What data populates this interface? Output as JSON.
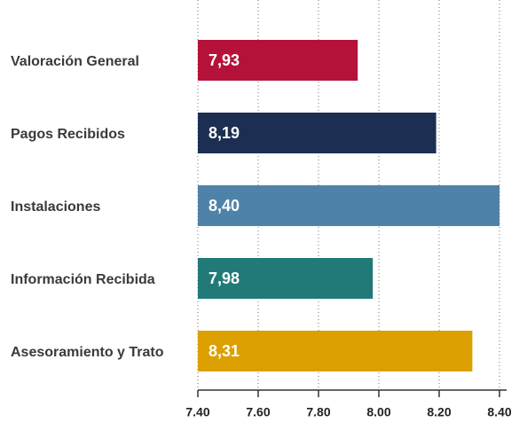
{
  "chart_data": {
    "type": "bar",
    "orientation": "horizontal",
    "categories": [
      "Valoración General",
      "Pagos Recibidos",
      "Instalaciones",
      "Información Recibida",
      "Asesoramiento y Trato"
    ],
    "values": [
      7.93,
      8.19,
      8.4,
      7.98,
      8.31
    ],
    "value_labels": [
      "7,93",
      "8,19",
      "8,40",
      "7,98",
      "8,31"
    ],
    "colors": [
      "#b5123a",
      "#1c2f52",
      "#4f82a8",
      "#217a78",
      "#dba000"
    ],
    "xlim": [
      7.4,
      8.4
    ],
    "xticks": [
      {
        "value": 7.4,
        "label": "7.40"
      },
      {
        "value": 7.6,
        "label": "7.60"
      },
      {
        "value": 7.8,
        "label": "7.80"
      },
      {
        "value": 8.0,
        "label": "8.00"
      },
      {
        "value": 8.2,
        "label": "8.20"
      },
      {
        "value": 8.4,
        "label": "8.40"
      }
    ],
    "grid": true
  }
}
